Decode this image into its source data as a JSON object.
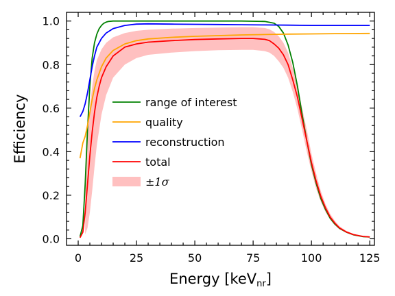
{
  "chart_data": {
    "type": "line",
    "xlabel_main": "Energy [keV",
    "xlabel_sub": "nr",
    "xlabel_close": "]",
    "ylabel": "Efficiency",
    "xlim": [
      -5,
      127
    ],
    "ylim": [
      -0.03,
      1.04
    ],
    "x_ticks": [
      0,
      25,
      50,
      75,
      100,
      125
    ],
    "y_ticks": [
      0.0,
      0.2,
      0.4,
      0.6,
      0.8,
      1.0
    ],
    "grid": false,
    "legend_position": "center-left",
    "series": [
      {
        "name": "range of interest",
        "color": "#008000",
        "x": [
          0.8,
          2,
          3,
          4,
          5,
          6,
          7,
          8,
          9,
          10,
          11,
          12,
          13,
          15,
          20,
          30,
          50,
          70,
          80,
          84,
          86,
          88,
          90,
          92,
          94,
          96,
          98,
          100,
          102,
          104,
          106,
          108,
          110,
          112,
          115,
          118,
          122,
          125
        ],
        "y": [
          0.01,
          0.06,
          0.25,
          0.5,
          0.7,
          0.83,
          0.9,
          0.94,
          0.965,
          0.98,
          0.99,
          0.995,
          0.998,
          1.0,
          1.0,
          1.0,
          1.0,
          1.0,
          0.998,
          0.99,
          0.975,
          0.945,
          0.89,
          0.81,
          0.7,
          0.57,
          0.45,
          0.34,
          0.255,
          0.185,
          0.135,
          0.095,
          0.068,
          0.048,
          0.03,
          0.018,
          0.01,
          0.008
        ]
      },
      {
        "name": "quality",
        "color": "#FFA500",
        "x": [
          0.8,
          2,
          3,
          4,
          5,
          6,
          7,
          8,
          10,
          12,
          15,
          20,
          25,
          30,
          40,
          50,
          60,
          70,
          80,
          90,
          100,
          110,
          125
        ],
        "y": [
          0.37,
          0.44,
          0.47,
          0.52,
          0.58,
          0.64,
          0.69,
          0.73,
          0.79,
          0.83,
          0.865,
          0.895,
          0.91,
          0.918,
          0.925,
          0.93,
          0.933,
          0.936,
          0.938,
          0.94,
          0.941,
          0.942,
          0.943
        ]
      },
      {
        "name": "reconstruction",
        "color": "#0000FF",
        "x": [
          0.8,
          2,
          3,
          4,
          5,
          6,
          7,
          8,
          10,
          12,
          15,
          20,
          25,
          30,
          40,
          50,
          60,
          70,
          80,
          90,
          100,
          110,
          125
        ],
        "y": [
          0.56,
          0.585,
          0.62,
          0.67,
          0.73,
          0.79,
          0.84,
          0.88,
          0.92,
          0.945,
          0.965,
          0.98,
          0.986,
          0.987,
          0.986,
          0.985,
          0.984,
          0.983,
          0.982,
          0.981,
          0.98,
          0.98,
          0.98
        ]
      },
      {
        "name": "total",
        "color": "#FF0000",
        "x": [
          0.8,
          2,
          3,
          4,
          5,
          6,
          7,
          8,
          9,
          10,
          12,
          15,
          20,
          25,
          30,
          40,
          50,
          60,
          70,
          75,
          80,
          82,
          84,
          86,
          88,
          90,
          92,
          94,
          96,
          98,
          100,
          102,
          104,
          106,
          108,
          110,
          112,
          115,
          118,
          122,
          125
        ],
        "y": [
          0.005,
          0.03,
          0.12,
          0.25,
          0.38,
          0.49,
          0.58,
          0.65,
          0.7,
          0.74,
          0.79,
          0.84,
          0.88,
          0.895,
          0.903,
          0.91,
          0.915,
          0.918,
          0.92,
          0.92,
          0.916,
          0.91,
          0.895,
          0.875,
          0.845,
          0.8,
          0.73,
          0.65,
          0.55,
          0.45,
          0.35,
          0.265,
          0.195,
          0.142,
          0.1,
          0.072,
          0.05,
          0.031,
          0.019,
          0.011,
          0.008
        ]
      }
    ],
    "band": {
      "name": "±1σ",
      "color": "#FFC0C0",
      "x": [
        3,
        4,
        5,
        6,
        7,
        8,
        10,
        12,
        15,
        20,
        25,
        30,
        40,
        50,
        60,
        70,
        75,
        80,
        82,
        84,
        86,
        88,
        90,
        92,
        94,
        96,
        98,
        100,
        102,
        104,
        106,
        108,
        110,
        112,
        115,
        118,
        122,
        125
      ],
      "upper": [
        0.3,
        0.46,
        0.6,
        0.7,
        0.77,
        0.82,
        0.87,
        0.9,
        0.925,
        0.945,
        0.955,
        0.96,
        0.965,
        0.968,
        0.97,
        0.972,
        0.972,
        0.968,
        0.962,
        0.95,
        0.93,
        0.9,
        0.855,
        0.785,
        0.7,
        0.6,
        0.5,
        0.39,
        0.3,
        0.22,
        0.16,
        0.115,
        0.083,
        0.058,
        0.036,
        0.022,
        0.012,
        0.009
      ],
      "lower": [
        0.02,
        0.05,
        0.12,
        0.22,
        0.33,
        0.43,
        0.57,
        0.66,
        0.74,
        0.8,
        0.83,
        0.845,
        0.855,
        0.862,
        0.866,
        0.868,
        0.868,
        0.862,
        0.855,
        0.84,
        0.815,
        0.785,
        0.74,
        0.675,
        0.595,
        0.5,
        0.4,
        0.31,
        0.23,
        0.17,
        0.123,
        0.087,
        0.062,
        0.043,
        0.027,
        0.016,
        0.009,
        0.007
      ]
    }
  }
}
